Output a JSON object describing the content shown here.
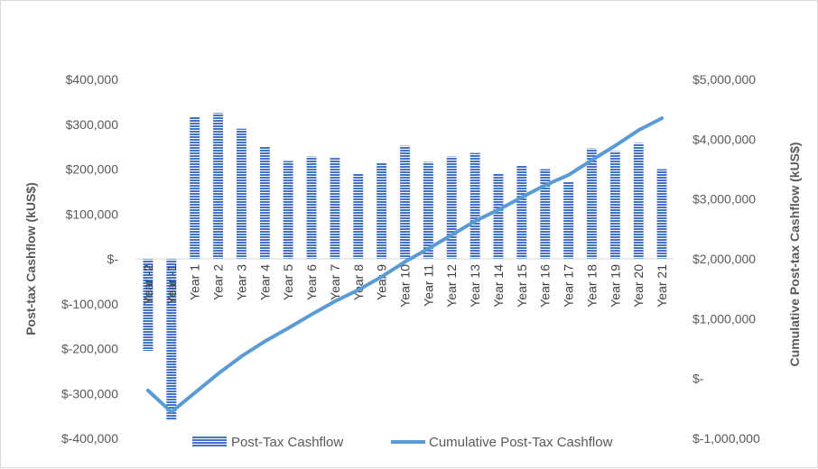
{
  "chart_data": {
    "type": "bar",
    "title": "",
    "categories": [
      "Year -2",
      "Year -1",
      "Year 1",
      "Year 2",
      "Year 3",
      "Year 4",
      "Year 5",
      "Year 6",
      "Year 7",
      "Year 8",
      "Year 9",
      "Year 10",
      "Year 11",
      "Year 12",
      "Year 13",
      "Year 14",
      "Year 15",
      "Year 16",
      "Year 17",
      "Year 18",
      "Year 19",
      "Year 20",
      "Year 21"
    ],
    "series": [
      {
        "name": "Post-Tax Cashflow",
        "type": "bar",
        "axis": "left",
        "color": "#4472c4",
        "values": [
          -205000,
          -360000,
          317000,
          325000,
          290000,
          250000,
          218000,
          228000,
          225000,
          190000,
          213000,
          252000,
          216000,
          228000,
          236000,
          190000,
          208000,
          200000,
          172000,
          246000,
          240000,
          258000,
          200000
        ]
      },
      {
        "name": "Cumulative Post-Tax Cashflow",
        "type": "line",
        "axis": "right",
        "color": "#5b9bd5",
        "values": [
          -200000,
          -560000,
          -240000,
          80000,
          370000,
          620000,
          840000,
          1070000,
          1290000,
          1480000,
          1700000,
          1950000,
          2170000,
          2400000,
          2630000,
          2820000,
          3030000,
          3230000,
          3400000,
          3650000,
          3890000,
          4150000,
          4350000
        ]
      }
    ],
    "y_left": {
      "label": "Post-tax Cashflow (kUS$)",
      "ylim": [
        -400000,
        400000
      ],
      "tick_values": [
        400000,
        300000,
        200000,
        100000,
        0,
        -100000,
        -200000,
        -300000,
        -400000
      ],
      "tick_labels": [
        "$400,000",
        "$300,000",
        "$200,000",
        "$100,000",
        "$-",
        "$-100,000",
        "$-200,000",
        "$-300,000",
        "$-400,000"
      ]
    },
    "y_right": {
      "label": "Cumulative Post-tax Cashflow (kUS$)",
      "ylim": [
        -1000000,
        5000000
      ],
      "tick_values": [
        5000000,
        4000000,
        3000000,
        2000000,
        1000000,
        0,
        -1000000
      ],
      "tick_labels": [
        "$5,000,000",
        "$4,000,000",
        "$3,000,000",
        "$2,000,000",
        "$1,000,000",
        "$-",
        "$-1,000,000"
      ]
    },
    "grid": false,
    "legend": "bottom"
  }
}
